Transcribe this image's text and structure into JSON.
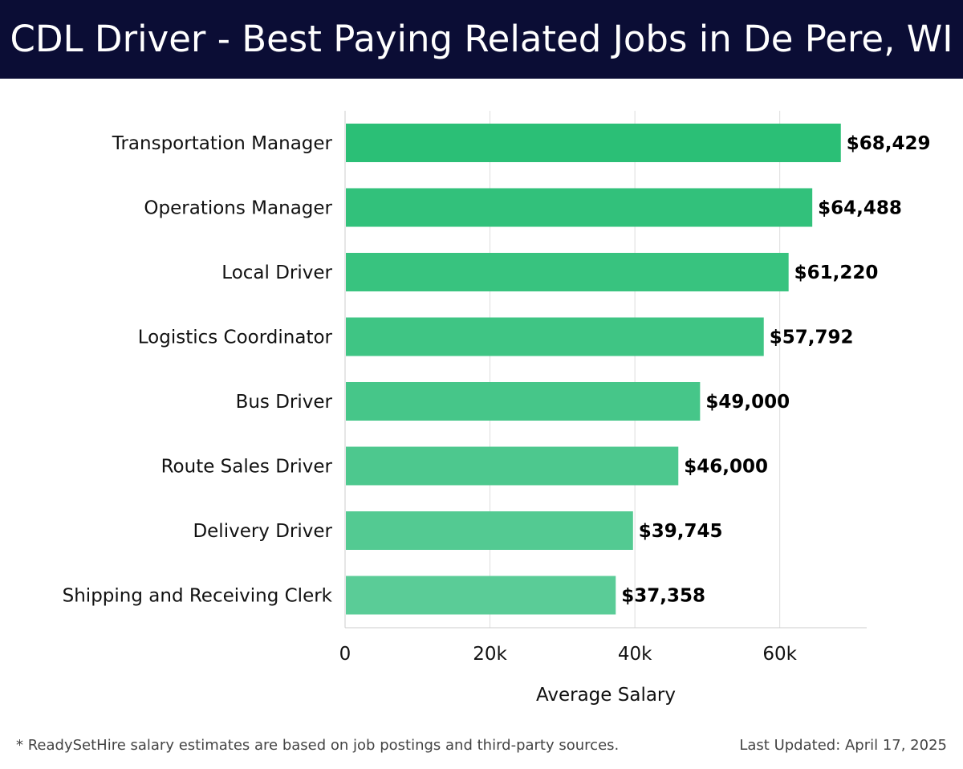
{
  "header": {
    "title": "CDL Driver - Best Paying Related Jobs in De Pere, WI"
  },
  "footer": {
    "note": "* ReadySetHire salary estimates are based on job postings and third-party sources.",
    "updated": "Last Updated: April 17, 2025"
  },
  "colors": {
    "header_bg": "#0b0d35",
    "bar_top": "#2bbf76",
    "bar_bottom": "#5acc97",
    "grid": "#dddddd",
    "label": "#111111"
  },
  "chart_data": {
    "type": "bar",
    "orientation": "horizontal",
    "title": "CDL Driver - Best Paying Related Jobs in De Pere, WI",
    "xlabel": "Average Salary",
    "ylabel": "",
    "categories": [
      "Transportation Manager",
      "Operations Manager",
      "Local Driver",
      "Logistics Coordinator",
      "Bus Driver",
      "Route Sales Driver",
      "Delivery Driver",
      "Shipping and Receiving Clerk"
    ],
    "values": [
      68429,
      64488,
      61220,
      57792,
      49000,
      46000,
      39745,
      37358
    ],
    "value_labels": [
      "$68,429",
      "$64,488",
      "$61,220",
      "$57,792",
      "$49,000",
      "$46,000",
      "$39,745",
      "$37,358"
    ],
    "xlim": [
      0,
      72000
    ],
    "xticks": [
      0,
      20000,
      40000,
      60000
    ],
    "xtick_labels": [
      "0",
      "20k",
      "40k",
      "60k"
    ],
    "grid": true,
    "legend": "none"
  }
}
